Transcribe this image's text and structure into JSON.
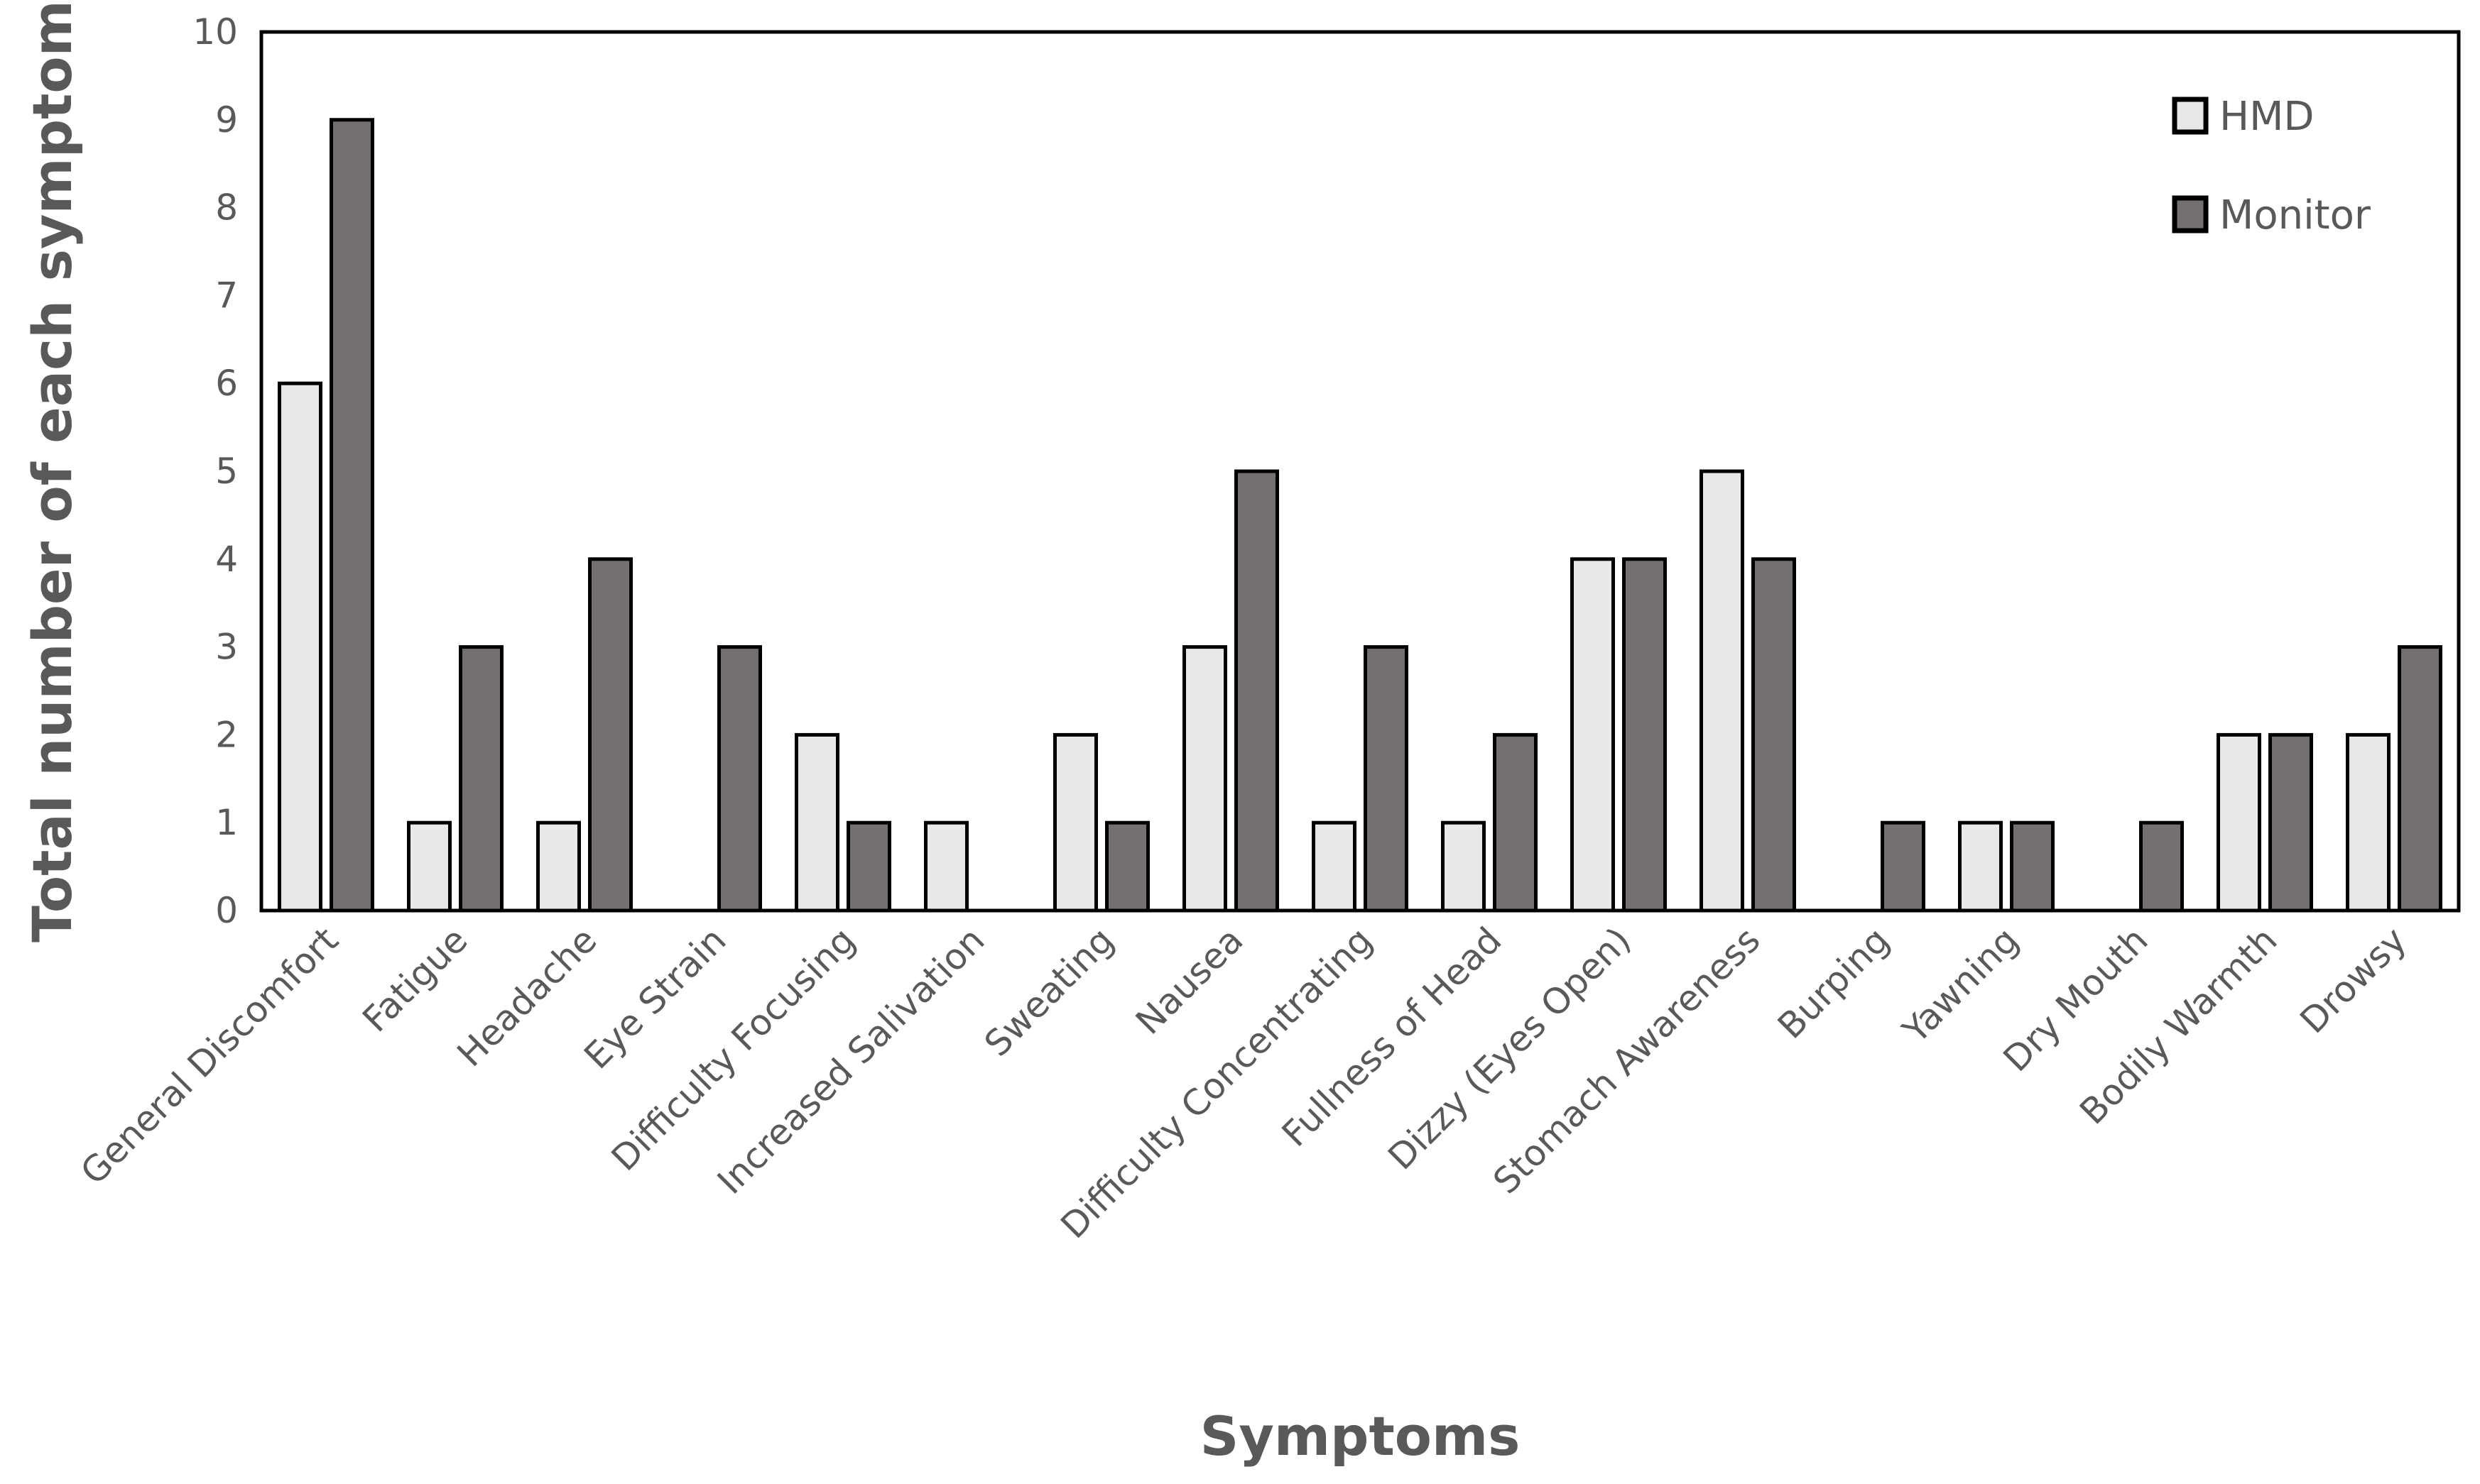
{
  "chart_data": {
    "type": "bar",
    "xlabel": "Symptoms",
    "ylabel": "Total number of each symptom",
    "ylim": [
      0,
      10
    ],
    "yticks": [
      0,
      1,
      2,
      3,
      4,
      5,
      6,
      7,
      8,
      9,
      10
    ],
    "grid": false,
    "legend_position": "top-right",
    "categories": [
      "General Discomfort",
      "Fatigue",
      "Headache",
      "Eye Strain",
      "Difficulty Focusing",
      "Increased Salivation",
      "Sweating",
      "Nausea",
      "Difficulty Concentrating",
      "Fullness of Head",
      "Dizzy (Eyes Open)",
      "Stomach Awareness",
      "Burping",
      "Yawning",
      "Dry Mouth",
      "Bodily Warmth",
      "Drowsy"
    ],
    "series": [
      {
        "name": "HMD",
        "color": "#e8e8e8",
        "values": [
          6,
          1,
          1,
          0,
          2,
          1,
          2,
          3,
          1,
          1,
          4,
          5,
          0,
          1,
          0,
          2,
          2
        ]
      },
      {
        "name": "Monitor",
        "color": "#757070",
        "values": [
          9,
          3,
          4,
          3,
          1,
          0,
          1,
          5,
          3,
          2,
          4,
          4,
          1,
          1,
          1,
          2,
          3
        ]
      }
    ]
  }
}
